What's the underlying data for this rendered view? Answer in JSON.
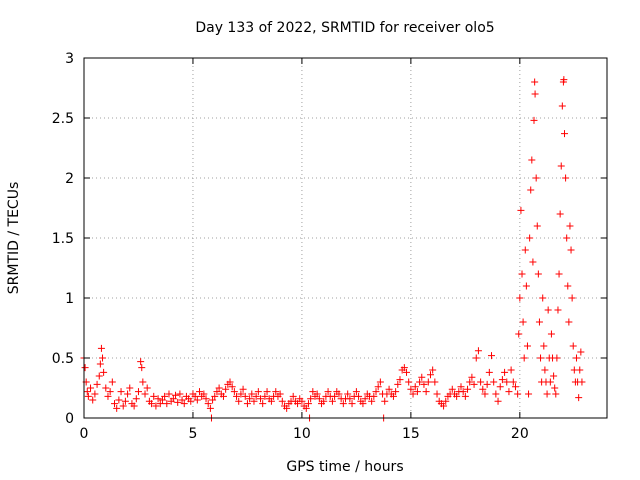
{
  "chart_data": {
    "type": "scatter",
    "title": "Day 133 of 2022, SRMTID for receiver olo5",
    "xlabel": "GPS time / hours",
    "ylabel": "SRMTID / TECUs",
    "xlim": [
      0,
      24
    ],
    "ylim": [
      0,
      3
    ],
    "xticks": [
      0,
      5,
      10,
      15,
      20
    ],
    "yticks": [
      0,
      0.5,
      1,
      1.5,
      2,
      2.5,
      3
    ],
    "xtick_labels": [
      "0",
      "5",
      "10",
      "15",
      "20"
    ],
    "ytick_labels": [
      "0",
      "0.5",
      "1",
      "1.5",
      "2",
      "2.5",
      "3"
    ],
    "grid": true,
    "marker": "+",
    "color": "#ff0000",
    "series": [
      {
        "name": "olo5",
        "points": [
          [
            0.0,
            0.5
          ],
          [
            0.05,
            0.42
          ],
          [
            0.1,
            0.3
          ],
          [
            0.15,
            0.22
          ],
          [
            0.2,
            0.18
          ],
          [
            0.3,
            0.25
          ],
          [
            0.4,
            0.15
          ],
          [
            0.5,
            0.2
          ],
          [
            0.6,
            0.28
          ],
          [
            0.7,
            0.35
          ],
          [
            0.75,
            0.45
          ],
          [
            0.8,
            0.58
          ],
          [
            0.85,
            0.5
          ],
          [
            0.9,
            0.38
          ],
          [
            1.0,
            0.25
          ],
          [
            1.1,
            0.18
          ],
          [
            1.2,
            0.22
          ],
          [
            1.3,
            0.3
          ],
          [
            1.4,
            0.12
          ],
          [
            1.5,
            0.08
          ],
          [
            1.6,
            0.15
          ],
          [
            1.7,
            0.22
          ],
          [
            1.8,
            0.1
          ],
          [
            1.9,
            0.14
          ],
          [
            2.0,
            0.2
          ],
          [
            2.1,
            0.25
          ],
          [
            2.2,
            0.12
          ],
          [
            2.3,
            0.1
          ],
          [
            2.4,
            0.16
          ],
          [
            2.5,
            0.22
          ],
          [
            2.6,
            0.47
          ],
          [
            2.65,
            0.42
          ],
          [
            2.7,
            0.3
          ],
          [
            2.8,
            0.2
          ],
          [
            2.9,
            0.25
          ],
          [
            3.0,
            0.14
          ],
          [
            3.1,
            0.12
          ],
          [
            3.2,
            0.18
          ],
          [
            3.3,
            0.1
          ],
          [
            3.4,
            0.16
          ],
          [
            3.5,
            0.12
          ],
          [
            3.6,
            0.15
          ],
          [
            3.7,
            0.18
          ],
          [
            3.8,
            0.12
          ],
          [
            3.9,
            0.2
          ],
          [
            4.0,
            0.14
          ],
          [
            4.1,
            0.16
          ],
          [
            4.2,
            0.19
          ],
          [
            4.3,
            0.13
          ],
          [
            4.4,
            0.2
          ],
          [
            4.5,
            0.15
          ],
          [
            4.6,
            0.12
          ],
          [
            4.7,
            0.18
          ],
          [
            4.8,
            0.16
          ],
          [
            4.9,
            0.14
          ],
          [
            5.0,
            0.2
          ],
          [
            5.1,
            0.18
          ],
          [
            5.2,
            0.15
          ],
          [
            5.3,
            0.22
          ],
          [
            5.4,
            0.18
          ],
          [
            5.5,
            0.2
          ],
          [
            5.6,
            0.16
          ],
          [
            5.7,
            0.12
          ],
          [
            5.8,
            0.08
          ],
          [
            5.85,
            0.0
          ],
          [
            5.9,
            0.15
          ],
          [
            6.0,
            0.18
          ],
          [
            6.1,
            0.22
          ],
          [
            6.2,
            0.25
          ],
          [
            6.3,
            0.2
          ],
          [
            6.4,
            0.18
          ],
          [
            6.5,
            0.24
          ],
          [
            6.6,
            0.28
          ],
          [
            6.7,
            0.3
          ],
          [
            6.8,
            0.26
          ],
          [
            6.9,
            0.22
          ],
          [
            7.0,
            0.18
          ],
          [
            7.1,
            0.14
          ],
          [
            7.2,
            0.2
          ],
          [
            7.3,
            0.24
          ],
          [
            7.4,
            0.18
          ],
          [
            7.5,
            0.12
          ],
          [
            7.6,
            0.16
          ],
          [
            7.7,
            0.2
          ],
          [
            7.8,
            0.14
          ],
          [
            7.9,
            0.18
          ],
          [
            8.0,
            0.22
          ],
          [
            8.1,
            0.16
          ],
          [
            8.2,
            0.12
          ],
          [
            8.3,
            0.18
          ],
          [
            8.4,
            0.22
          ],
          [
            8.5,
            0.16
          ],
          [
            8.6,
            0.14
          ],
          [
            8.7,
            0.18
          ],
          [
            8.8,
            0.22
          ],
          [
            8.9,
            0.18
          ],
          [
            9.0,
            0.2
          ],
          [
            9.1,
            0.14
          ],
          [
            9.2,
            0.1
          ],
          [
            9.3,
            0.08
          ],
          [
            9.4,
            0.12
          ],
          [
            9.5,
            0.14
          ],
          [
            9.6,
            0.18
          ],
          [
            9.7,
            0.14
          ],
          [
            9.8,
            0.12
          ],
          [
            9.9,
            0.16
          ],
          [
            10.0,
            0.14
          ],
          [
            10.1,
            0.1
          ],
          [
            10.2,
            0.08
          ],
          [
            10.3,
            0.12
          ],
          [
            10.35,
            0.0
          ],
          [
            10.4,
            0.16
          ],
          [
            10.5,
            0.22
          ],
          [
            10.6,
            0.18
          ],
          [
            10.7,
            0.2
          ],
          [
            10.8,
            0.16
          ],
          [
            10.9,
            0.12
          ],
          [
            11.0,
            0.14
          ],
          [
            11.1,
            0.18
          ],
          [
            11.2,
            0.22
          ],
          [
            11.3,
            0.18
          ],
          [
            11.4,
            0.14
          ],
          [
            11.5,
            0.18
          ],
          [
            11.6,
            0.22
          ],
          [
            11.7,
            0.2
          ],
          [
            11.8,
            0.16
          ],
          [
            11.9,
            0.12
          ],
          [
            12.0,
            0.16
          ],
          [
            12.1,
            0.2
          ],
          [
            12.2,
            0.16
          ],
          [
            12.3,
            0.12
          ],
          [
            12.4,
            0.18
          ],
          [
            12.5,
            0.22
          ],
          [
            12.6,
            0.18
          ],
          [
            12.7,
            0.14
          ],
          [
            12.8,
            0.12
          ],
          [
            12.9,
            0.16
          ],
          [
            13.0,
            0.2
          ],
          [
            13.1,
            0.18
          ],
          [
            13.2,
            0.14
          ],
          [
            13.3,
            0.18
          ],
          [
            13.4,
            0.22
          ],
          [
            13.5,
            0.26
          ],
          [
            13.6,
            0.3
          ],
          [
            13.7,
            0.2
          ],
          [
            13.75,
            0.0
          ],
          [
            13.8,
            0.14
          ],
          [
            13.9,
            0.2
          ],
          [
            14.0,
            0.24
          ],
          [
            14.1,
            0.2
          ],
          [
            14.2,
            0.18
          ],
          [
            14.3,
            0.22
          ],
          [
            14.4,
            0.28
          ],
          [
            14.5,
            0.32
          ],
          [
            14.6,
            0.4
          ],
          [
            14.7,
            0.42
          ],
          [
            14.8,
            0.38
          ],
          [
            14.9,
            0.3
          ],
          [
            15.0,
            0.24
          ],
          [
            15.1,
            0.2
          ],
          [
            15.2,
            0.26
          ],
          [
            15.3,
            0.22
          ],
          [
            15.4,
            0.3
          ],
          [
            15.5,
            0.34
          ],
          [
            15.6,
            0.28
          ],
          [
            15.7,
            0.22
          ],
          [
            15.8,
            0.3
          ],
          [
            15.9,
            0.36
          ],
          [
            16.0,
            0.4
          ],
          [
            16.1,
            0.3
          ],
          [
            16.2,
            0.2
          ],
          [
            16.3,
            0.14
          ],
          [
            16.4,
            0.12
          ],
          [
            16.5,
            0.1
          ],
          [
            16.6,
            0.14
          ],
          [
            16.7,
            0.18
          ],
          [
            16.8,
            0.2
          ],
          [
            16.9,
            0.24
          ],
          [
            17.0,
            0.2
          ],
          [
            17.1,
            0.18
          ],
          [
            17.2,
            0.22
          ],
          [
            17.3,
            0.26
          ],
          [
            17.4,
            0.22
          ],
          [
            17.5,
            0.18
          ],
          [
            17.6,
            0.24
          ],
          [
            17.7,
            0.3
          ],
          [
            17.8,
            0.34
          ],
          [
            17.9,
            0.28
          ],
          [
            18.0,
            0.5
          ],
          [
            18.1,
            0.56
          ],
          [
            18.2,
            0.3
          ],
          [
            18.3,
            0.24
          ],
          [
            18.4,
            0.2
          ],
          [
            18.5,
            0.28
          ],
          [
            18.6,
            0.38
          ],
          [
            18.7,
            0.52
          ],
          [
            18.8,
            0.3
          ],
          [
            18.9,
            0.2
          ],
          [
            19.0,
            0.14
          ],
          [
            19.1,
            0.26
          ],
          [
            19.2,
            0.32
          ],
          [
            19.3,
            0.38
          ],
          [
            19.4,
            0.3
          ],
          [
            19.5,
            0.22
          ],
          [
            19.6,
            0.4
          ],
          [
            19.7,
            0.3
          ],
          [
            19.8,
            0.26
          ],
          [
            19.9,
            0.2
          ],
          [
            19.95,
            0.7
          ],
          [
            20.0,
            1.0
          ],
          [
            20.05,
            1.73
          ],
          [
            20.1,
            1.2
          ],
          [
            20.15,
            0.8
          ],
          [
            20.2,
            0.5
          ],
          [
            20.25,
            1.4
          ],
          [
            20.3,
            1.1
          ],
          [
            20.35,
            0.6
          ],
          [
            20.4,
            0.2
          ],
          [
            20.45,
            1.5
          ],
          [
            20.5,
            1.9
          ],
          [
            20.55,
            2.15
          ],
          [
            20.6,
            1.3
          ],
          [
            20.65,
            2.48
          ],
          [
            20.68,
            2.8
          ],
          [
            20.7,
            2.7
          ],
          [
            20.75,
            2.0
          ],
          [
            20.8,
            1.6
          ],
          [
            20.85,
            1.2
          ],
          [
            20.9,
            0.8
          ],
          [
            20.95,
            0.5
          ],
          [
            21.0,
            0.3
          ],
          [
            21.05,
            1.0
          ],
          [
            21.1,
            0.6
          ],
          [
            21.15,
            0.4
          ],
          [
            21.2,
            0.3
          ],
          [
            21.25,
            0.2
          ],
          [
            21.3,
            0.9
          ],
          [
            21.35,
            0.5
          ],
          [
            21.4,
            0.3
          ],
          [
            21.45,
            0.7
          ],
          [
            21.5,
            0.5
          ],
          [
            21.55,
            0.35
          ],
          [
            21.6,
            0.25
          ],
          [
            21.65,
            0.2
          ],
          [
            21.7,
            0.5
          ],
          [
            21.75,
            0.9
          ],
          [
            21.8,
            1.2
          ],
          [
            21.85,
            1.7
          ],
          [
            21.9,
            2.1
          ],
          [
            21.95,
            2.6
          ],
          [
            22.0,
            2.8
          ],
          [
            22.02,
            2.82
          ],
          [
            22.05,
            2.37
          ],
          [
            22.1,
            2.0
          ],
          [
            22.15,
            1.5
          ],
          [
            22.2,
            1.1
          ],
          [
            22.25,
            0.8
          ],
          [
            22.3,
            1.6
          ],
          [
            22.35,
            1.4
          ],
          [
            22.4,
            1.0
          ],
          [
            22.45,
            0.6
          ],
          [
            22.5,
            0.4
          ],
          [
            22.55,
            0.3
          ],
          [
            22.6,
            0.5
          ],
          [
            22.65,
            0.3
          ],
          [
            22.7,
            0.17
          ],
          [
            22.75,
            0.4
          ],
          [
            22.8,
            0.55
          ],
          [
            22.85,
            0.3
          ]
        ]
      }
    ]
  }
}
